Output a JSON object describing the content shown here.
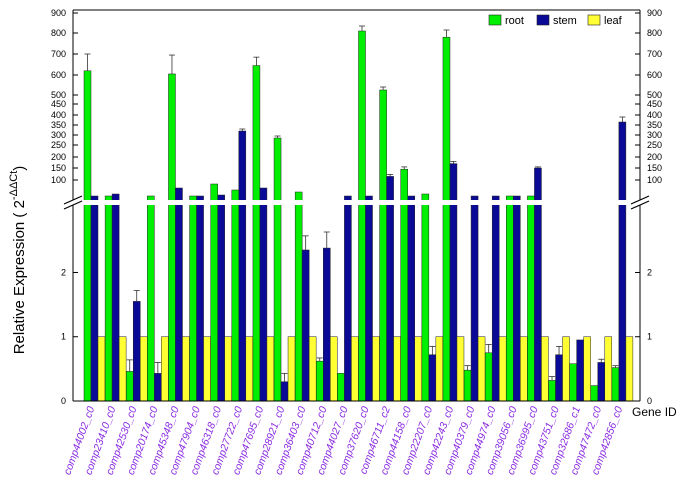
{
  "chart_data": {
    "type": "bar",
    "xlabel": "Gene ID",
    "ylabel_main": "Relative Expression ( 2",
    "ylabel_sup": "-ΔΔCt",
    "ylabel_close": ")",
    "axis_break": true,
    "ylim_lower": [
      0,
      3.05
    ],
    "ylim_upper": [
      0,
      900
    ],
    "yticks_lower": [
      "0",
      "1",
      "2"
    ],
    "yticks_upper": [
      "100",
      "150",
      "200",
      "250",
      "300",
      "350",
      "400",
      "450",
      "500",
      "600",
      "700",
      "800",
      "900"
    ],
    "legend_position": "top-right",
    "categories": [
      "comp44002_c0",
      "comp23410_c0",
      "comp42530_c0",
      "comp20174_c0",
      "comp45348_c0",
      "comp47904_c0",
      "comp46318_c0",
      "comp27722_c0",
      "comp47695_c0",
      "comp28921_c0",
      "comp36403_c0",
      "comp40712_c0",
      "comp44027_c0",
      "comp37620_c0",
      "comp46711_c2",
      "comp44158_c0",
      "comp22207_c0",
      "comp42243_c0",
      "comp40379_c0",
      "comp44974_c0",
      "comp39056_c0",
      "comp36995_c0",
      "comp43751_c0",
      "comp32686_c1",
      "comp47472_c0",
      "comp42856_c0"
    ],
    "series": [
      {
        "name": "root",
        "color": "#00ee00",
        "values": [
          620,
          20,
          0.46,
          20,
          605,
          20,
          80,
          50,
          645,
          285,
          40,
          0.62,
          0.43,
          810,
          525,
          145,
          30,
          780,
          0.48,
          0.75,
          20,
          20,
          0.32,
          0.58,
          0.24,
          0.52
        ],
        "errors": [
          80,
          0,
          0.18,
          0,
          90,
          0,
          0,
          0,
          40,
          10,
          0,
          0.05,
          0,
          25,
          15,
          10,
          0,
          35,
          0.07,
          0.13,
          0,
          0,
          0.06,
          0,
          0,
          0.03
        ]
      },
      {
        "name": "stem",
        "color": "#0a0a96",
        "values": [
          20,
          30,
          1.55,
          0.43,
          60,
          20,
          25,
          320,
          60,
          0.3,
          2.35,
          2.38,
          20,
          20,
          115,
          20,
          0.72,
          170,
          20,
          20,
          20,
          150,
          0.72,
          0.95,
          0.6,
          365
        ],
        "errors": [
          0,
          0,
          0.17,
          0.17,
          0,
          0,
          0,
          10,
          0,
          0.13,
          0.22,
          0.25,
          0,
          0,
          8,
          0,
          0.13,
          10,
          0,
          0,
          0,
          5,
          0.13,
          0,
          0.05,
          25
        ]
      },
      {
        "name": "leaf",
        "color": "#ffff33",
        "values": [
          1,
          1,
          1,
          1,
          1,
          1,
          1,
          1,
          1,
          1,
          1,
          1,
          1,
          1,
          1,
          1,
          1,
          1,
          1,
          1,
          1,
          1,
          1,
          1,
          1,
          1
        ],
        "errors": [
          0,
          0,
          0,
          0,
          0,
          0,
          0,
          0,
          0,
          0,
          0,
          0,
          0,
          0,
          0,
          0,
          0,
          0,
          0,
          0,
          0,
          0,
          0,
          0,
          0,
          0
        ]
      }
    ]
  }
}
